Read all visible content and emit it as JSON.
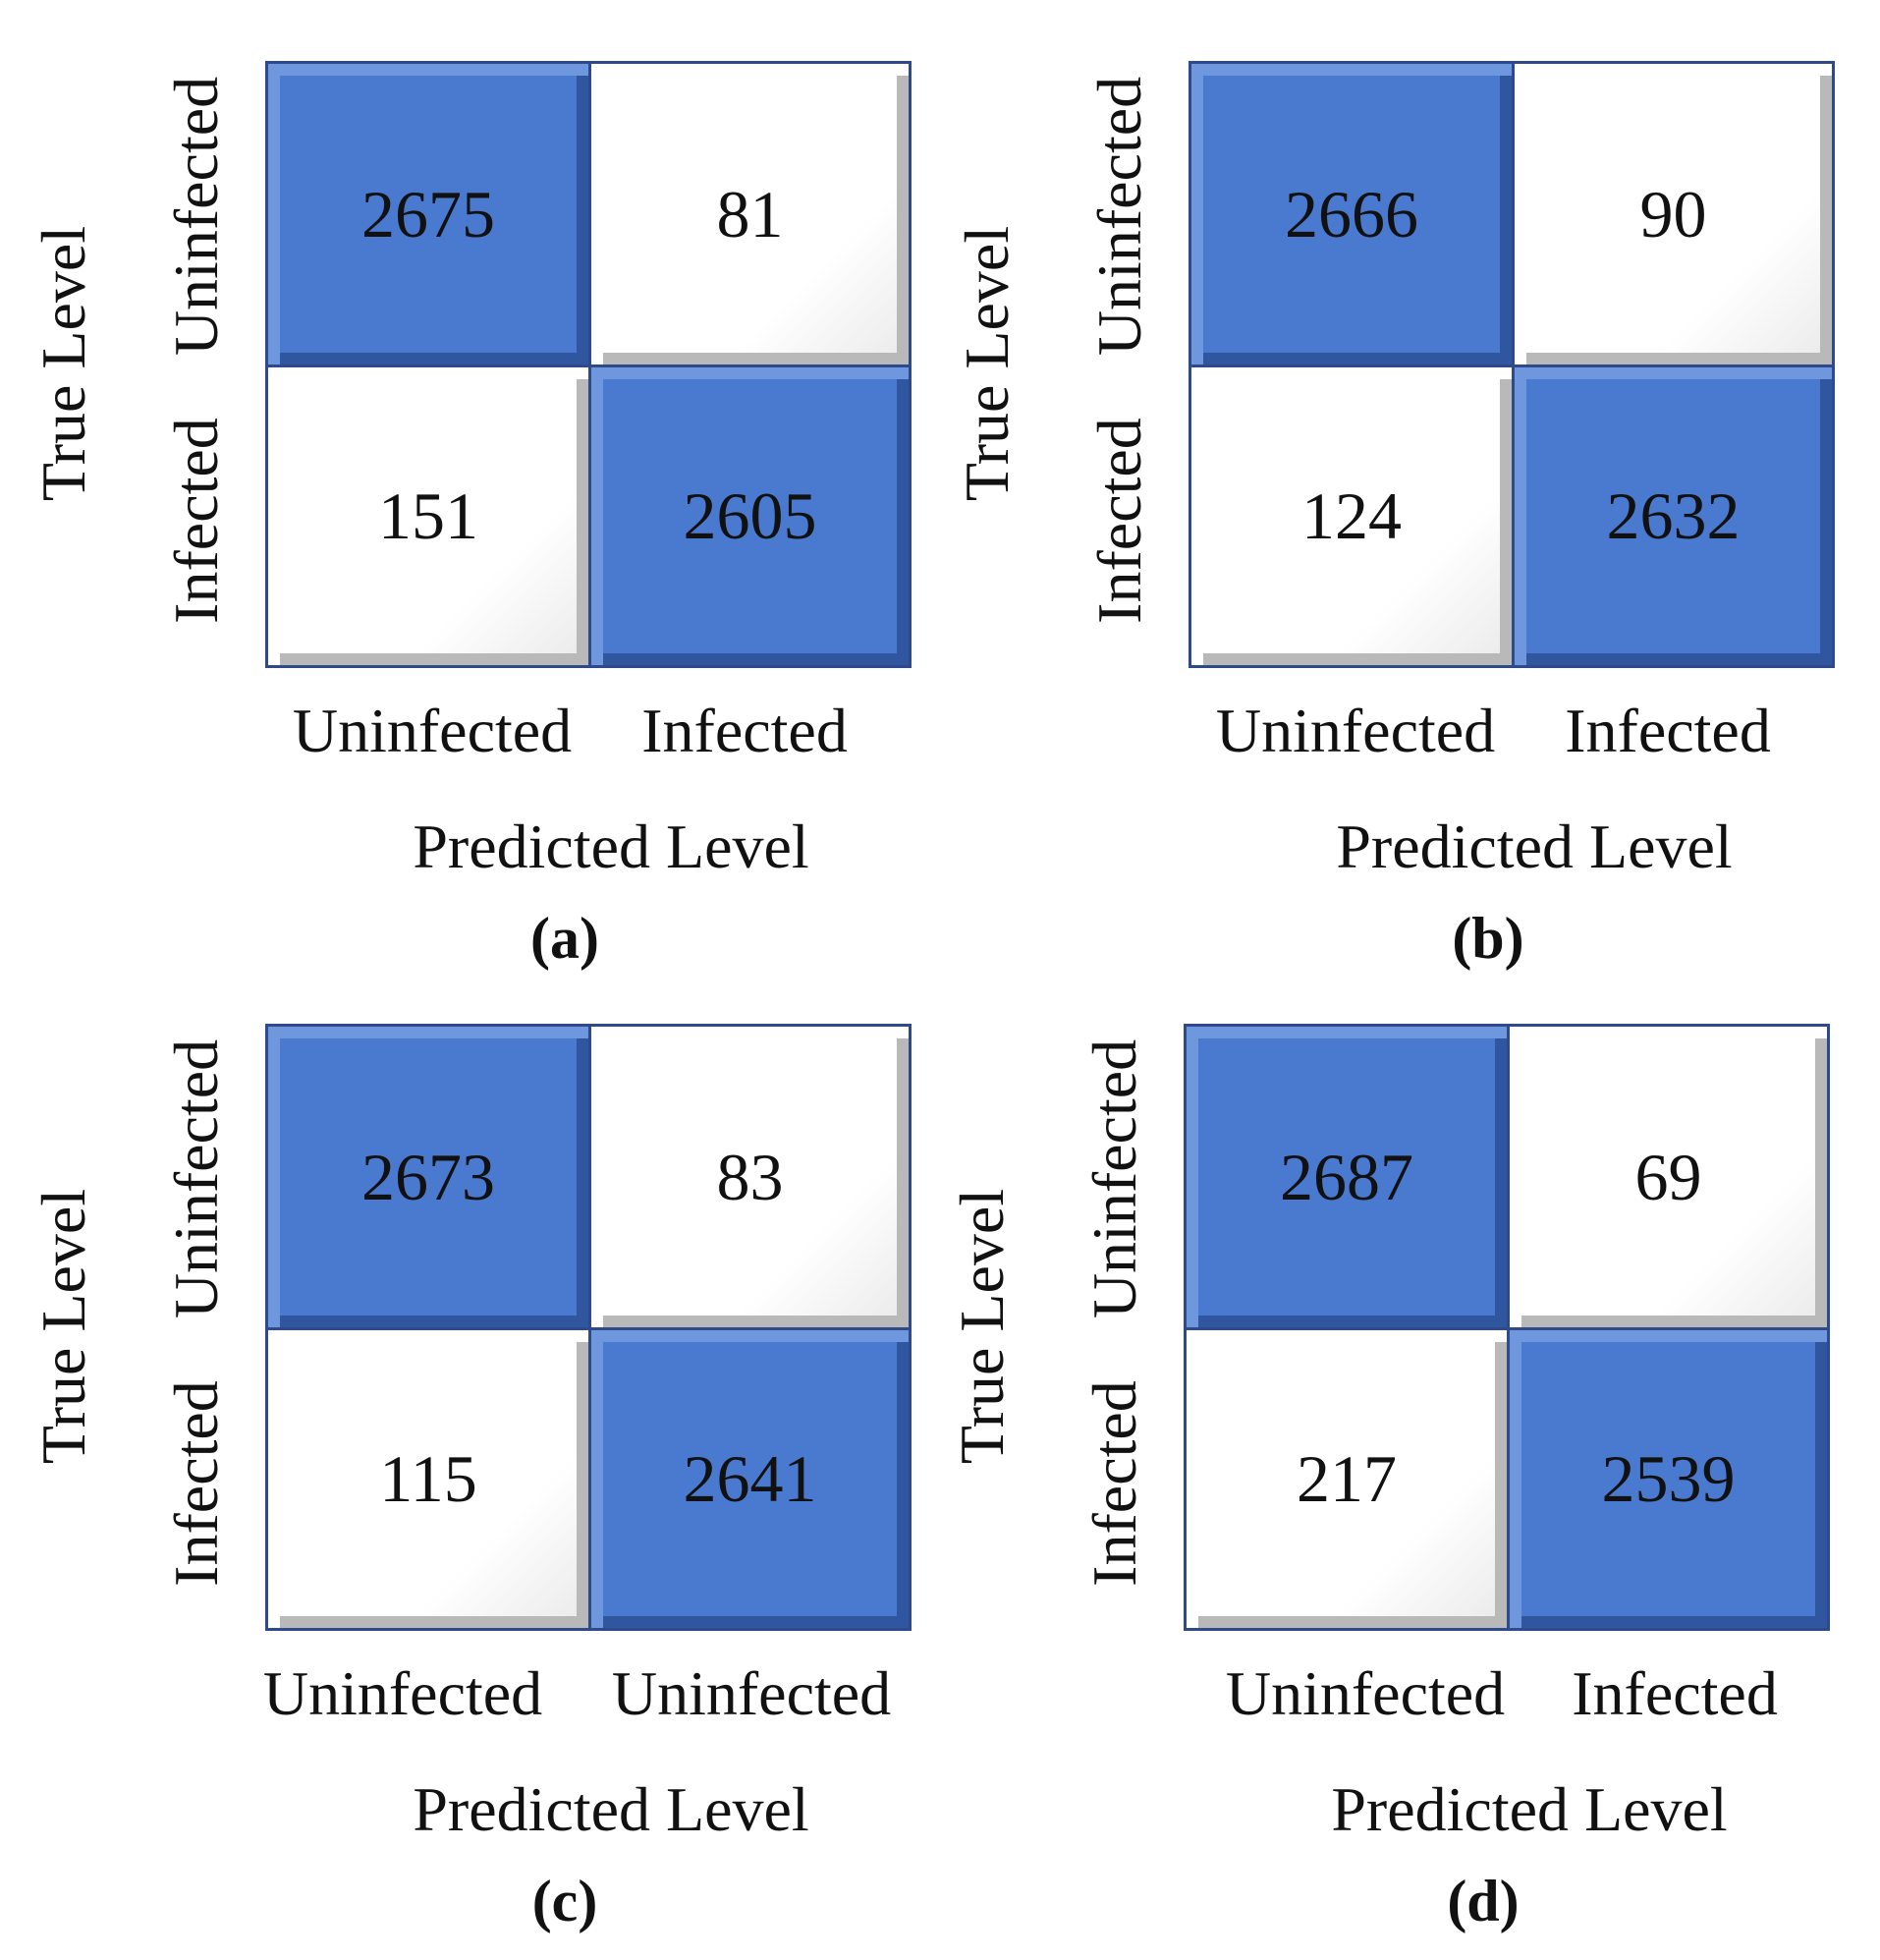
{
  "chart_data": [
    {
      "type": "heatmap",
      "caption": "(a)",
      "ylabel": "True Level",
      "xlabel": "Predicted Level",
      "row_labels": [
        "Uninfected",
        "Infected"
      ],
      "col_labels": [
        "Uninfected",
        "Infected"
      ],
      "matrix": [
        [
          2675,
          81
        ],
        [
          151,
          2605
        ]
      ]
    },
    {
      "type": "heatmap",
      "caption": "(b)",
      "ylabel": "True Level",
      "xlabel": "Predicted Level",
      "row_labels": [
        "Uninfected",
        "Infected"
      ],
      "col_labels": [
        "Uninfected",
        "Infected"
      ],
      "matrix": [
        [
          2666,
          90
        ],
        [
          124,
          2632
        ]
      ]
    },
    {
      "type": "heatmap",
      "caption": "(c)",
      "ylabel": "True Level",
      "xlabel": "Predicted Level",
      "row_labels": [
        "Uninfected",
        "Infected"
      ],
      "col_labels": [
        "Uninfected",
        "Uninfected"
      ],
      "matrix": [
        [
          2673,
          83
        ],
        [
          115,
          2641
        ]
      ]
    },
    {
      "type": "heatmap",
      "caption": "(d)",
      "ylabel": "True Level",
      "xlabel": "Predicted Level",
      "row_labels": [
        "Uninfected",
        "Infected"
      ],
      "col_labels": [
        "Uninfected",
        "Infected"
      ],
      "matrix": [
        [
          2687,
          69
        ],
        [
          217,
          2539
        ]
      ]
    }
  ],
  "colors": {
    "diagonal": "#4a7acf",
    "off_diagonal": "#ffffff",
    "border": "#2f4a8a"
  }
}
